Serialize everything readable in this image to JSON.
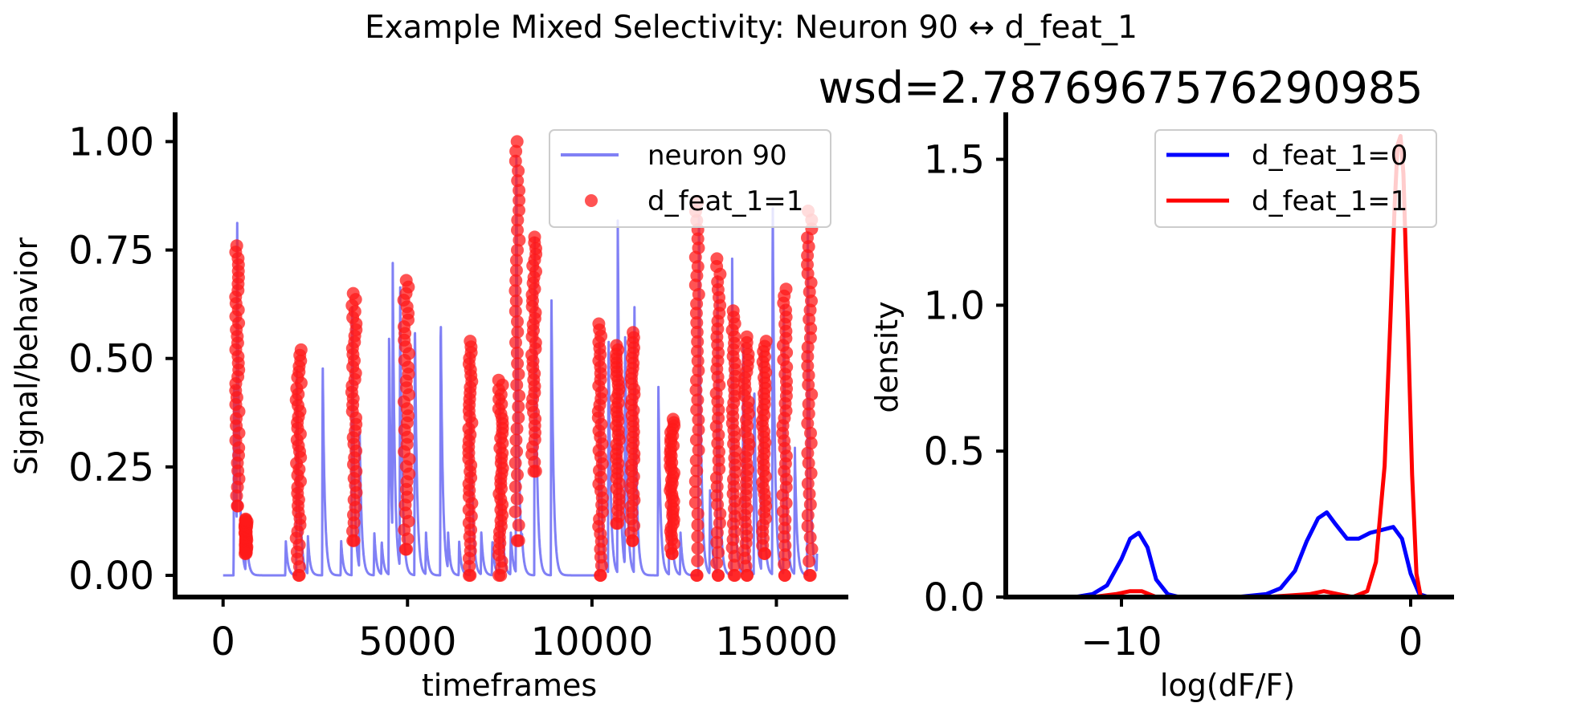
{
  "suptitle": "Example Mixed Selectivity: Neuron 90 ↔ d_feat_1",
  "colors": {
    "trace": "#8080f5",
    "marker": "#ff1a1a",
    "kde0": "#0000ff",
    "kde1": "#ff0000"
  },
  "chart_data": [
    {
      "type": "line",
      "title": "",
      "xlabel": "timeframes",
      "ylabel": "Signal/behavior",
      "xlim": [
        -1300,
        16950
      ],
      "ylim": [
        -0.05,
        1.06
      ],
      "xticks": [
        0,
        5000,
        10000,
        15000
      ],
      "xtick_labels": [
        "0",
        "5000",
        "10000",
        "15000"
      ],
      "yticks": [
        0.0,
        0.25,
        0.5,
        0.75,
        1.0
      ],
      "ytick_labels": [
        "0.00",
        "0.25",
        "0.50",
        "0.75",
        "1.00"
      ],
      "legend_position": "top-right",
      "legend": [
        "neuron 90",
        "d_feat_1=1"
      ],
      "series": [
        {
          "name": "neuron 90",
          "kind": "line",
          "baseline": 0.0,
          "transients": [
            [
              300,
              0.45
            ],
            [
              380,
              0.85
            ],
            [
              620,
              0.13
            ],
            [
              1700,
              0.08
            ],
            [
              2000,
              0.5
            ],
            [
              2100,
              0.15
            ],
            [
              2300,
              0.09
            ],
            [
              2700,
              0.5
            ],
            [
              3200,
              0.08
            ],
            [
              3500,
              0.65
            ],
            [
              3700,
              0.35
            ],
            [
              4100,
              0.1
            ],
            [
              4300,
              0.08
            ],
            [
              4500,
              0.57
            ],
            [
              4600,
              0.72
            ],
            [
              4800,
              0.68
            ],
            [
              5200,
              0.6
            ],
            [
              5500,
              0.1
            ],
            [
              5900,
              0.61
            ],
            [
              6100,
              0.1
            ],
            [
              6400,
              0.08
            ],
            [
              6700,
              0.55
            ],
            [
              7000,
              0.1
            ],
            [
              7300,
              0.08
            ],
            [
              7500,
              0.45
            ],
            [
              7800,
              0.1
            ],
            [
              7950,
              1.0
            ],
            [
              8100,
              0.1
            ],
            [
              8450,
              0.78
            ],
            [
              8900,
              0.67
            ],
            [
              10200,
              0.55
            ],
            [
              10450,
              0.57
            ],
            [
              10700,
              0.83
            ],
            [
              10900,
              0.56
            ],
            [
              11150,
              0.65
            ],
            [
              11800,
              0.45
            ],
            [
              12100,
              0.35
            ],
            [
              12400,
              0.1
            ],
            [
              12900,
              0.88
            ],
            [
              13200,
              0.2
            ],
            [
              13400,
              0.72
            ],
            [
              13800,
              0.73
            ],
            [
              14100,
              0.55
            ],
            [
              14400,
              0.45
            ],
            [
              14600,
              0.52
            ],
            [
              14900,
              0.88
            ],
            [
              15200,
              0.66
            ],
            [
              15500,
              0.3
            ],
            [
              15850,
              0.84
            ],
            [
              16100,
              0.05
            ]
          ]
        },
        {
          "name": "d_feat_1=1",
          "kind": "scatter",
          "intervals": [
            [
              280,
              490,
              0.16,
              0.76
            ],
            [
              540,
              700,
              0.05,
              0.13
            ],
            [
              1900,
              2200,
              0.0,
              0.52
            ],
            [
              3400,
              3700,
              0.08,
              0.65
            ],
            [
              4800,
              5150,
              0.06,
              0.68
            ],
            [
              6600,
              6800,
              0.0,
              0.54
            ],
            [
              7400,
              7650,
              0.0,
              0.45
            ],
            [
              7850,
              8100,
              0.08,
              1.0
            ],
            [
              8300,
              8550,
              0.24,
              0.78
            ],
            [
              10100,
              10350,
              0.0,
              0.58
            ],
            [
              10600,
              10800,
              0.12,
              0.53
            ],
            [
              11000,
              11200,
              0.08,
              0.56
            ],
            [
              12050,
              12300,
              0.05,
              0.36
            ],
            [
              12750,
              12950,
              0.0,
              0.86
            ],
            [
              13300,
              13550,
              0.0,
              0.73
            ],
            [
              13750,
              13950,
              0.0,
              0.61
            ],
            [
              14050,
              14350,
              0.0,
              0.55
            ],
            [
              14550,
              14800,
              0.05,
              0.54
            ],
            [
              15100,
              15350,
              0.0,
              0.66
            ],
            [
              15750,
              16050,
              0.0,
              0.84
            ]
          ]
        }
      ]
    },
    {
      "type": "line",
      "title": "wsd=2.787696757629098‍5",
      "xlabel": "log(dF/F)",
      "ylabel": "density",
      "xlim": [
        -14,
        1.5
      ],
      "ylim": [
        0,
        1.65
      ],
      "xticks": [
        -10,
        0
      ],
      "xtick_labels": [
        "−10",
        "0"
      ],
      "yticks": [
        0.0,
        0.5,
        1.0,
        1.5
      ],
      "ytick_labels": [
        "0.0",
        "0.5",
        "1.0",
        "1.5"
      ],
      "legend_position": "top-right",
      "series": [
        {
          "name": "d_feat_1=0",
          "x": [
            -11.6,
            -11.0,
            -10.5,
            -10.0,
            -9.7,
            -9.4,
            -9.1,
            -8.8,
            -8.4,
            -8.0,
            -7.0,
            -6.0,
            -5.0,
            -4.5,
            -4.0,
            -3.6,
            -3.2,
            -2.9,
            -2.6,
            -2.2,
            -1.8,
            -1.4,
            -1.0,
            -0.6,
            -0.3,
            0.0,
            0.3,
            0.6
          ],
          "y": [
            0.0,
            0.01,
            0.04,
            0.13,
            0.2,
            0.22,
            0.17,
            0.06,
            0.01,
            0.0,
            0.0,
            0.0,
            0.01,
            0.03,
            0.09,
            0.19,
            0.27,
            0.29,
            0.25,
            0.2,
            0.2,
            0.22,
            0.23,
            0.24,
            0.2,
            0.08,
            0.01,
            0.0
          ]
        },
        {
          "name": "d_feat_1=1",
          "x": [
            -11.0,
            -10.2,
            -9.7,
            -9.3,
            -8.8,
            -8.0,
            -5.0,
            -3.5,
            -3.0,
            -2.5,
            -2.0,
            -1.5,
            -1.2,
            -0.9,
            -0.7,
            -0.55,
            -0.45,
            -0.35,
            -0.25,
            -0.1,
            0.05,
            0.2,
            0.35
          ],
          "y": [
            0.0,
            0.01,
            0.02,
            0.02,
            0.0,
            0.0,
            0.0,
            0.01,
            0.02,
            0.01,
            0.0,
            0.02,
            0.12,
            0.45,
            0.95,
            1.35,
            1.55,
            1.58,
            1.45,
            0.95,
            0.42,
            0.08,
            0.0
          ]
        }
      ]
    }
  ]
}
